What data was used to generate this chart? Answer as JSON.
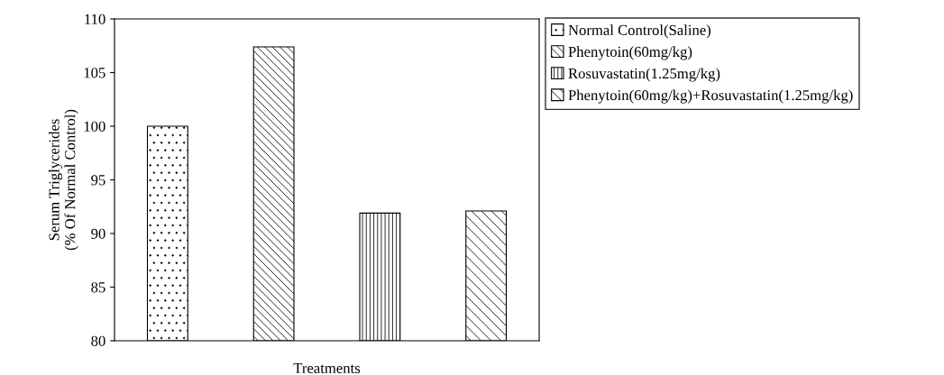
{
  "chart_data": {
    "type": "bar",
    "ylabel": "Serum Triglycerides\n(% Of Normal Control)",
    "xlabel": "Treatments",
    "categories": [
      null,
      null,
      null,
      null
    ],
    "series": [
      {
        "name": "Normal Control(Saline)",
        "color": "#000000",
        "values": [
          100,
          null,
          null,
          null
        ]
      },
      {
        "name": "Phenytoin(60mg/kg)",
        "color": "#000000",
        "values": [
          null,
          107.4,
          null,
          null
        ]
      },
      {
        "name": "Rosuvastatin(1.25mg/kg)",
        "color": "#000000",
        "values": [
          null,
          null,
          91.9,
          null
        ]
      },
      {
        "name": "Phenytoin(60mg/kg)+Rosuvastatin(1.25mg/kg)",
        "color": "#000000",
        "values": [
          null,
          null,
          null,
          92.1
        ]
      }
    ],
    "ylim": [
      80,
      110
    ],
    "yticks": [
      80,
      85,
      90,
      95,
      100,
      105,
      110
    ],
    "grid": false,
    "legend": "top right"
  }
}
